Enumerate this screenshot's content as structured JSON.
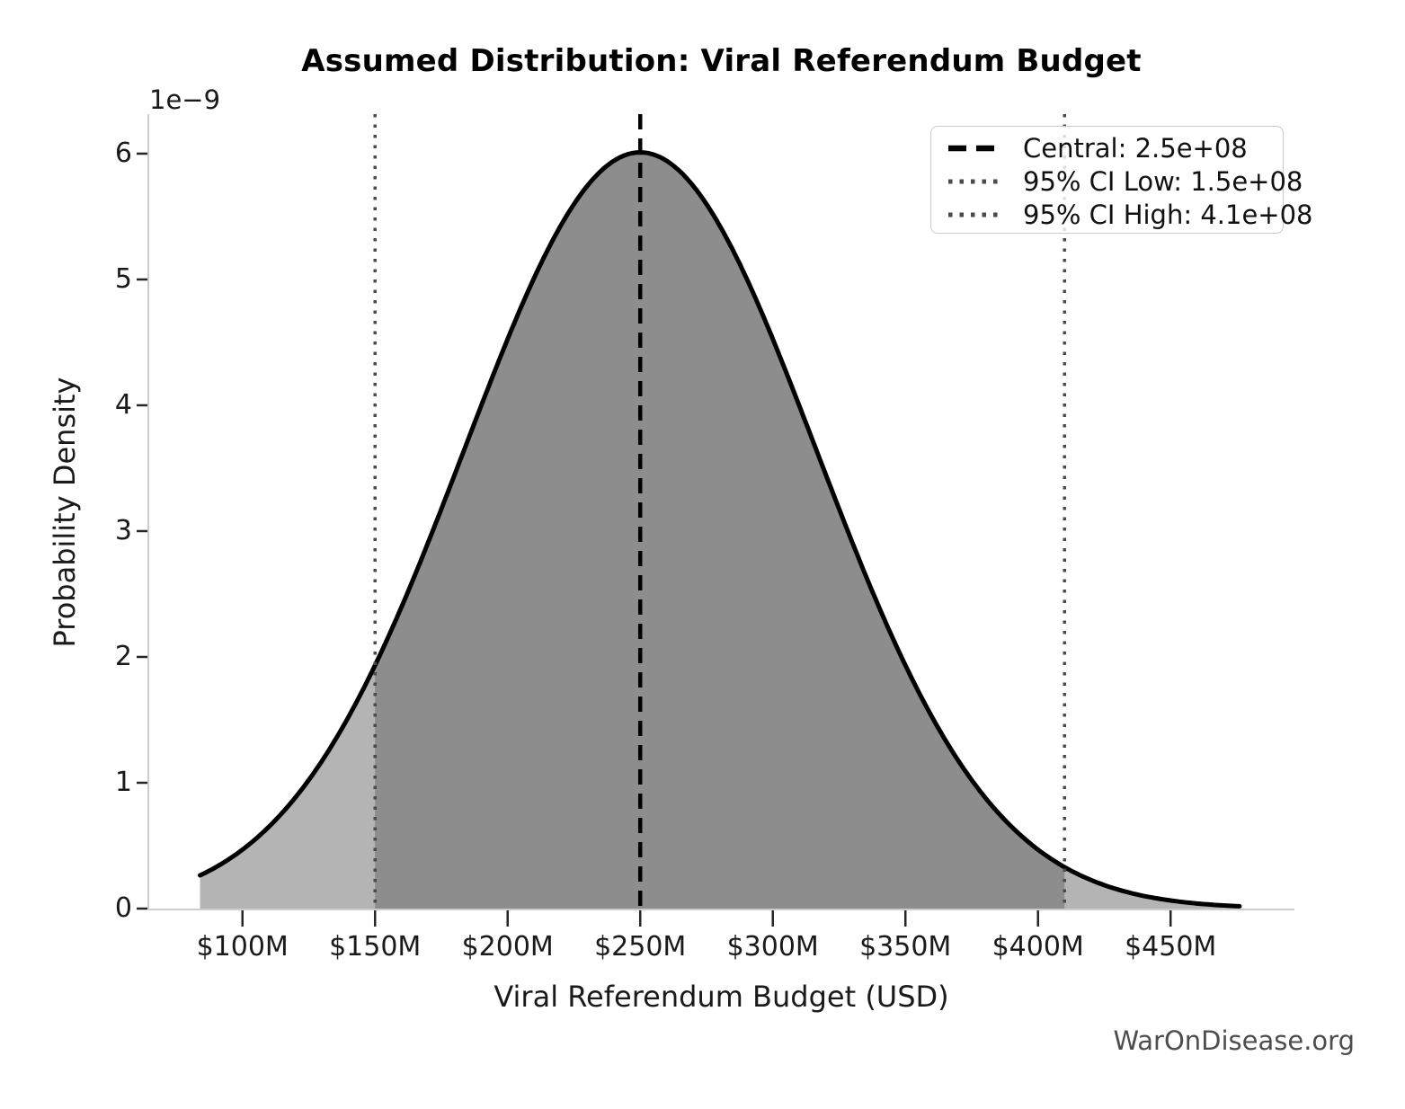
{
  "chart_data": {
    "type": "area",
    "title": "Assumed Distribution: Viral Referendum Budget",
    "xlabel": "Viral Referendum Budget (USD)",
    "ylabel": "Probability Density",
    "y_offset_label": "1e−9",
    "watermark": "WarOnDisease.org",
    "grid": false,
    "xlim": [
      64500000,
      496700000
    ],
    "ylim": [
      0,
      6.314e-09
    ],
    "x_ticks": [
      {
        "value": 100000000,
        "label": "$100M"
      },
      {
        "value": 150000000,
        "label": "$150M"
      },
      {
        "value": 200000000,
        "label": "$200M"
      },
      {
        "value": 250000000,
        "label": "$250M"
      },
      {
        "value": 300000000,
        "label": "$300M"
      },
      {
        "value": 350000000,
        "label": "$350M"
      },
      {
        "value": 400000000,
        "label": "$400M"
      },
      {
        "value": 450000000,
        "label": "$450M"
      }
    ],
    "y_ticks": [
      {
        "value": 0,
        "label": "0"
      },
      {
        "value": 1e-09,
        "label": "1"
      },
      {
        "value": 2e-09,
        "label": "2"
      },
      {
        "value": 3e-09,
        "label": "3"
      },
      {
        "value": 4e-09,
        "label": "4"
      },
      {
        "value": 5e-09,
        "label": "5"
      },
      {
        "value": 6e-09,
        "label": "6"
      }
    ],
    "distribution": {
      "shape": "normal",
      "mean": 250000000.0,
      "sigma": 66400000.0,
      "peak_density": 6.01e-09,
      "x_start": 84000000.0,
      "x_end": 476000000.0
    },
    "reference_points": {
      "x_usd_millions": [
        84,
        100,
        150,
        200,
        250,
        300,
        350,
        410,
        476
      ],
      "density_1e9": [
        0.26,
        0.47,
        1.93,
        4.53,
        6.01,
        4.53,
        1.93,
        0.33,
        0.02
      ]
    },
    "markers": {
      "central": {
        "value": 250000000.0,
        "label": "Central: 2.5e+08",
        "style": "dashed",
        "color": "#000000"
      },
      "ci_low": {
        "value": 150000000.0,
        "label": "95% CI Low: 1.5e+08",
        "style": "dotted",
        "color": "#4a4a4a"
      },
      "ci_high": {
        "value": 410000000.0,
        "label": "95% CI High: 4.1e+08",
        "style": "dotted",
        "color": "#4a4a4a"
      }
    },
    "legend": {
      "position": "upper right"
    },
    "colors": {
      "curve": "#000000",
      "fill_light": "#b4b4b4",
      "fill_dark": "#8d8d8d",
      "spine": "#cccccc",
      "tick": "#262626"
    }
  }
}
